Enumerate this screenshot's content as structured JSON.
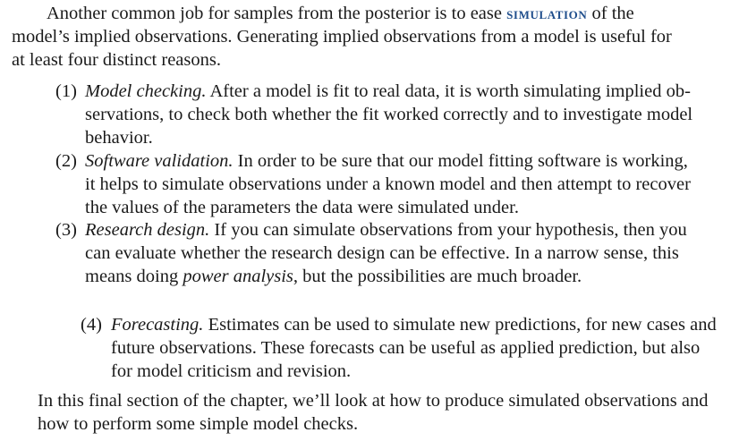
{
  "intro": {
    "p1_lead": "Another common job for samples from the posterior is to ease ",
    "p1_term": "simulation",
    "p1_tail": " of the",
    "l2": "model’s implied observations.  Generating implied observations from a model is useful for",
    "l3": "at least four distinct reasons."
  },
  "items": [
    {
      "num": "(1)",
      "title": "Model checking.",
      "l1_rest": " After a model is fit to real data, it is worth simulating implied ob-",
      "l2": "servations, to check both whether the fit worked correctly and to investigate model",
      "l3": "behavior."
    },
    {
      "num": "(2)",
      "title": "Software validation.",
      "l1_rest": " In order to be sure that our model fitting software is working,",
      "l2": "it helps to simulate observations under a known model and then attempt to recover",
      "l3": "the values of the parameters the data were simulated under."
    },
    {
      "num": "(3)",
      "title": "Research design.",
      "l1_rest": " If you can simulate observations from your hypothesis, then you",
      "l2": "can evaluate whether the research design can be effective.  In a narrow sense, this",
      "l3_pre": "means doing ",
      "l3_em": "power analysis",
      "l3_post": ", but the possibilities are much broader."
    },
    {
      "num": "(4)",
      "title": "Forecasting.",
      "l1_rest": " Estimates can be used to simulate new predictions, for new cases and",
      "l2": "future observations.  These forecasts can be useful as applied prediction, but also",
      "l3": "for model criticism and revision."
    }
  ],
  "closing": {
    "l1": "In this final section of the chapter, we’ll look at how to produce simulated observations and",
    "l2": "how to perform some simple model checks."
  }
}
